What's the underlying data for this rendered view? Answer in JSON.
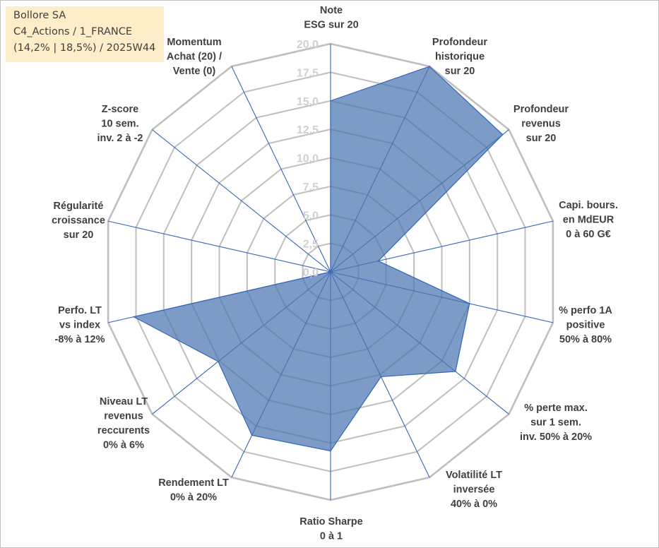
{
  "info_box": {
    "company": "Bollore SA",
    "portfolio": "C4_Actions / 1_FRANCE",
    "stats": "(14,2% | 18,5%) / 2025W44"
  },
  "chart_data": {
    "type": "radar",
    "title": "",
    "rlim": [
      0,
      20
    ],
    "tick_step": 2.5,
    "tick_labels": [
      "0,0",
      "2,5",
      "5,0",
      "7,5",
      "10,0",
      "12,5",
      "15,0",
      "17,5",
      "20,0"
    ],
    "grid": true,
    "axes": [
      {
        "label": [
          "Note",
          "ESG sur 20"
        ]
      },
      {
        "label": [
          "Profondeur",
          "historique",
          "sur 20"
        ]
      },
      {
        "label": [
          "Profondeur",
          "revenus",
          "sur 20"
        ]
      },
      {
        "label": [
          "Capi. bours.",
          "en MdEUR",
          "0 à 60 G€"
        ]
      },
      {
        "label": [
          "% perfo 1A",
          "positive",
          "50% à 80%"
        ]
      },
      {
        "label": [
          "% perte max.",
          "sur 1 sem.",
          "inv. 50% à 20%"
        ]
      },
      {
        "label": [
          "Volatilité LT",
          "inversée",
          "40% à 0%"
        ]
      },
      {
        "label": [
          "Ratio Sharpe",
          "0 à 1"
        ]
      },
      {
        "label": [
          "Rendement LT",
          "0% à 20%"
        ]
      },
      {
        "label": [
          "Niveau LT",
          "revenus",
          "reccurents",
          "0% à 6%"
        ]
      },
      {
        "label": [
          "Perfo. LT",
          "vs index",
          "-8% à 12%"
        ]
      },
      {
        "label": [
          "Régularité",
          "croissance",
          "sur 20"
        ]
      },
      {
        "label": [
          "Z-score",
          "10 sem.",
          "inv. 2 à -2"
        ]
      },
      {
        "label": [
          "Momentum",
          "Achat (20) /",
          "Vente (0)"
        ]
      }
    ],
    "series": [
      {
        "values": [
          15.0,
          20.0,
          19.3,
          4.3,
          12.5,
          14.0,
          10.2,
          15.7,
          15.9,
          12.6,
          17.7,
          0.0,
          0.0,
          0.0
        ],
        "color": "#4a76b1",
        "fill_opacity": 0.72
      }
    ],
    "colors": {
      "grid": "#bfbfbf",
      "spoke": "#3565b8",
      "fill": "#4a76b1",
      "tick_text": "#d0d0d0",
      "axis_text": "#404040"
    }
  }
}
